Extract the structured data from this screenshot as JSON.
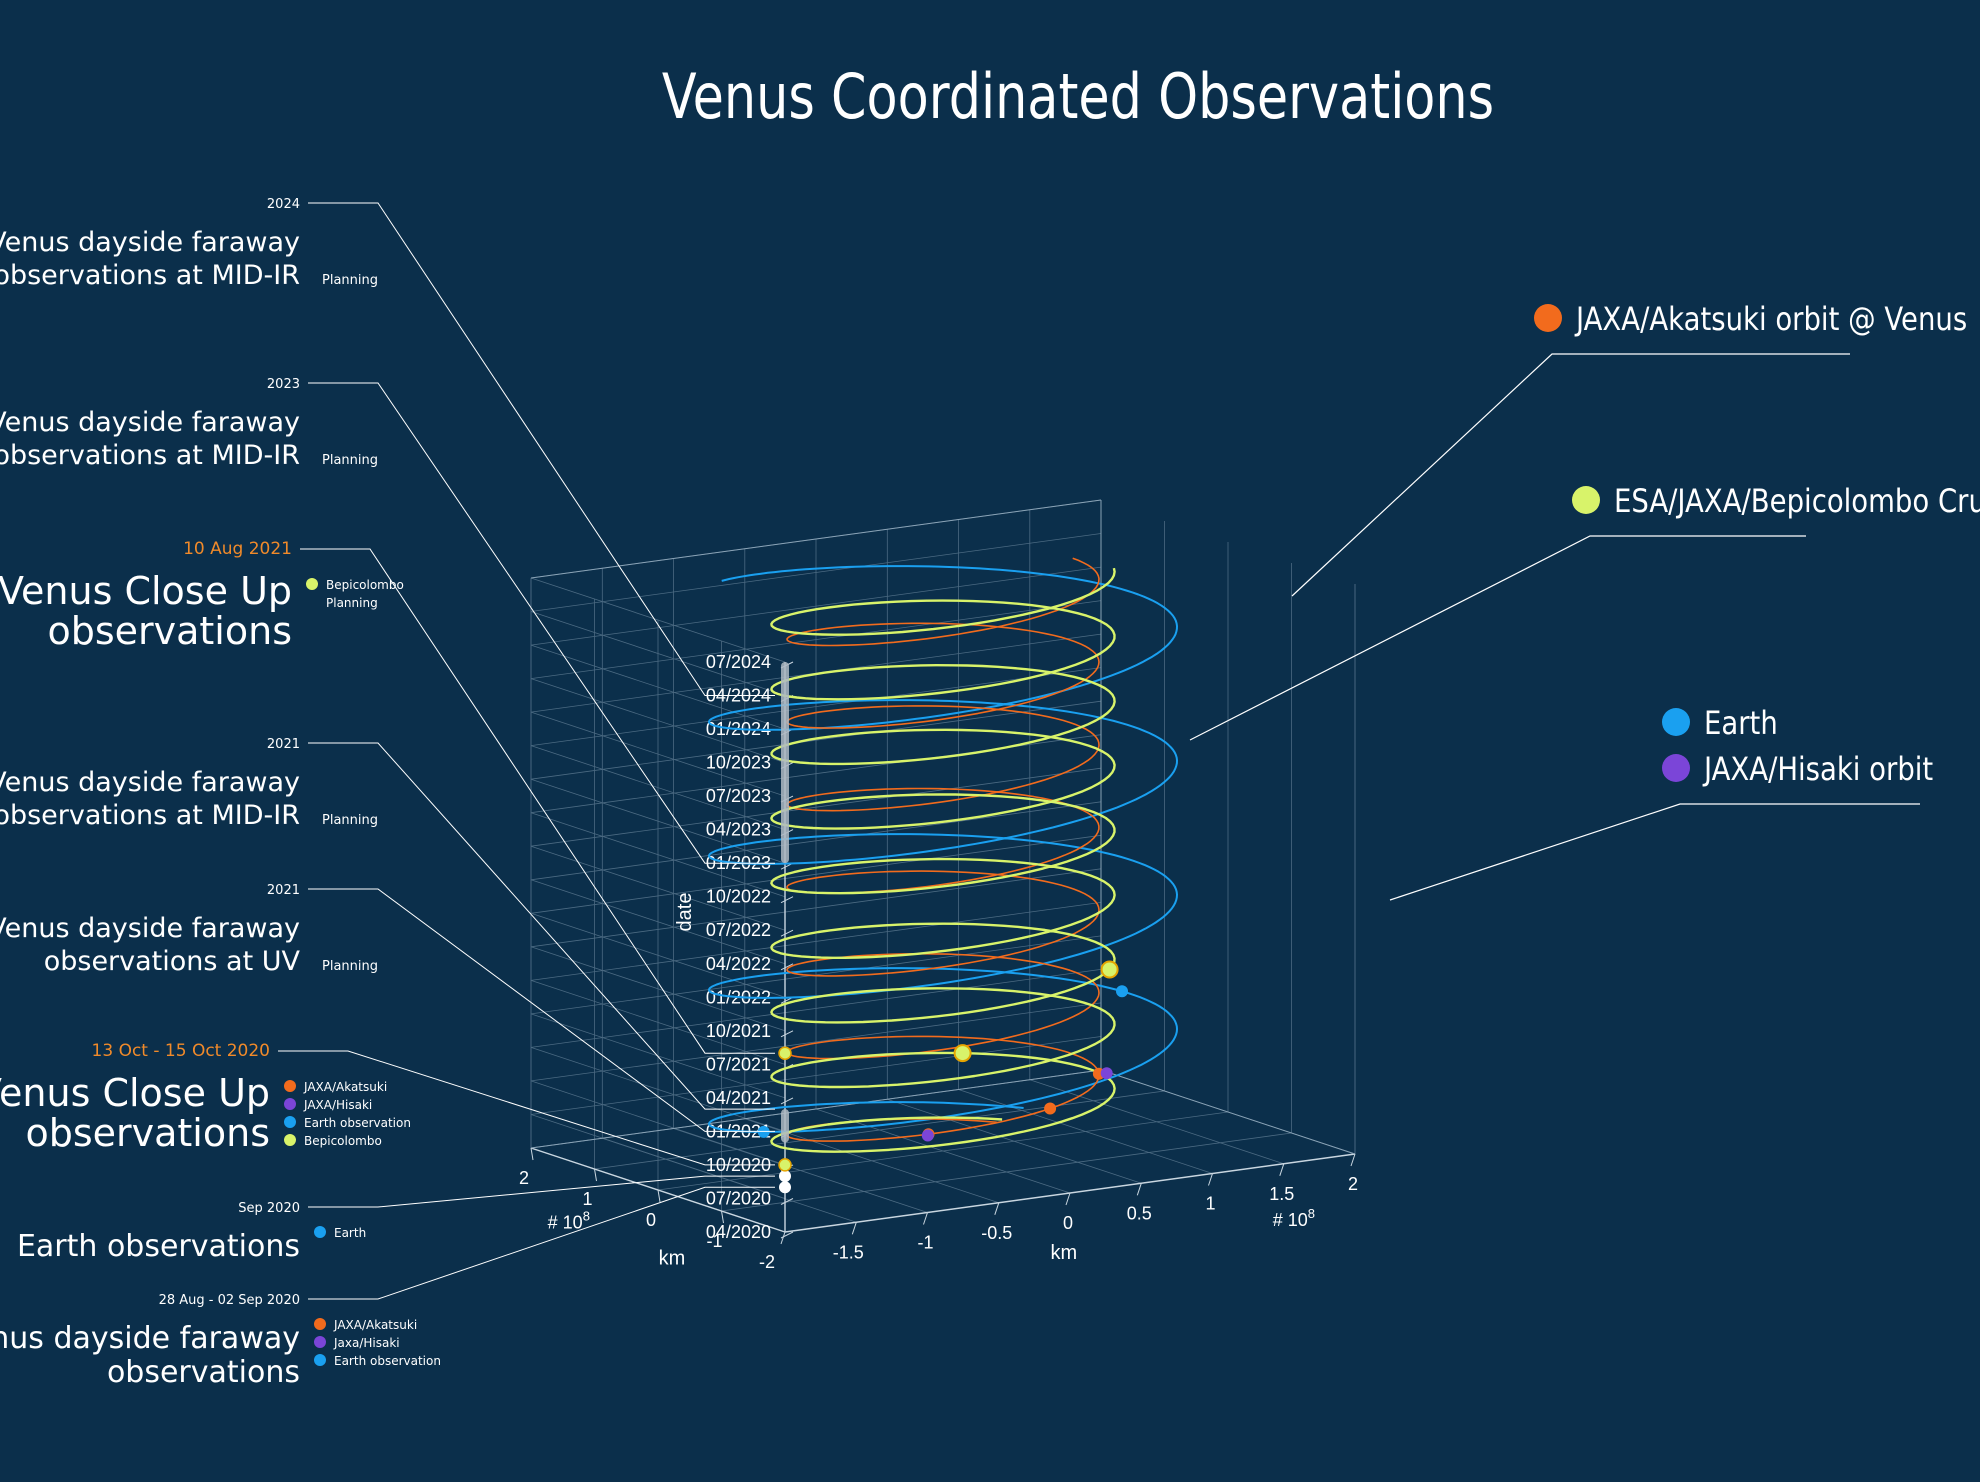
{
  "chart_data": {
    "type": "line",
    "title": "Venus Coordinated Observations",
    "xlabel": "km",
    "ylabel": "km",
    "zlabel": "date",
    "x_ticks": [
      "-2",
      "-1.5",
      "-1",
      "-0.5",
      "0",
      "0.5",
      "1",
      "1.5",
      "2"
    ],
    "y_ticks": [
      "2",
      "1",
      "0",
      "-1"
    ],
    "axis_exponent": "# 10",
    "axis_exponent_power": "8",
    "date_ticks": [
      "04/2020",
      "07/2020",
      "10/2020",
      "01/2021",
      "04/2021",
      "07/2021",
      "10/2021",
      "01/2022",
      "04/2022",
      "07/2022",
      "10/2022",
      "01/2023",
      "04/2023",
      "07/2023",
      "10/2023",
      "01/2024",
      "04/2024",
      "07/2024"
    ],
    "date_range": [
      "2020-04",
      "2024-07"
    ],
    "grid": true,
    "series": [
      {
        "name": "JAXA/Akatsuki orbit @ Venus",
        "color": "#f26b1d",
        "radius_km": 100000000.0,
        "period_days": 225
      },
      {
        "name": "ESA/JAXA/Bepicolombo Cruise",
        "color": "#d8f36a",
        "radius_km": 110000000.0,
        "period_days": 176
      },
      {
        "name": "Earth",
        "color": "#1aa0f0",
        "radius_km": 150000000.0,
        "period_days": 365
      },
      {
        "name": "JAXA/Hisaki orbit",
        "color": "#7b45d8"
      }
    ],
    "timeline_markers": [
      {
        "date": "2020-08",
        "color": "#ffffff"
      },
      {
        "date": "2020-09",
        "color": "#ffffff"
      },
      {
        "date": "2020-10",
        "color": "#d8f36a"
      },
      {
        "date": "2021-08",
        "color": "#d8f36a"
      }
    ],
    "planning_bands": [
      [
        "2020-12",
        "2021-03"
      ],
      [
        "2023-01",
        "2024-07"
      ]
    ],
    "event_points": [
      {
        "series": "JAXA/Akatsuki orbit @ Venus",
        "date": "2020-10"
      },
      {
        "series": "JAXA/Akatsuki orbit @ Venus",
        "date": "2020-09"
      },
      {
        "series": "JAXA/Akatsuki orbit @ Venus",
        "date": "2020-08"
      },
      {
        "series": "JAXA/Hisaki orbit",
        "date": "2020-10"
      },
      {
        "series": "JAXA/Hisaki orbit",
        "date": "2020-08"
      },
      {
        "series": "Earth",
        "date": "2021-03"
      },
      {
        "series": "Earth",
        "date": "2020-09"
      },
      {
        "series": "ESA/JAXA/Bepicolombo Cruise",
        "date": "2020-10"
      },
      {
        "series": "ESA/JAXA/Bepicolombo Cruise",
        "date": "2021-08"
      }
    ],
    "annotations": [
      {
        "date": "2024",
        "title": [
          "Venus dayside faraway",
          "observations at MID-IR"
        ],
        "note": "Planning",
        "size": "small"
      },
      {
        "date": "2023",
        "title": [
          "Venus dayside faraway",
          "observations at MID-IR"
        ],
        "note": "Planning",
        "size": "small"
      },
      {
        "date": "10 Aug 2021",
        "highlight": true,
        "title": [
          "Venus Close Up",
          "observations"
        ],
        "size": "large",
        "legend": [
          {
            "label": "Bepicolombo",
            "color": "#d8f36a"
          },
          {
            "label": "Planning",
            "color": ""
          }
        ]
      },
      {
        "date": "2021",
        "title": [
          "Venus dayside faraway",
          "observations at MID-IR"
        ],
        "note": "Planning",
        "size": "small"
      },
      {
        "date": "2021",
        "title": [
          "Venus dayside faraway",
          "observations at UV"
        ],
        "note": "Planning",
        "size": "small"
      },
      {
        "date": "13 Oct - 15 Oct 2020",
        "highlight": true,
        "title": [
          "Venus Close Up",
          "observations"
        ],
        "size": "large",
        "legend": [
          {
            "label": "JAXA/Akatsuki",
            "color": "#f26b1d"
          },
          {
            "label": "JAXA/Hisaki",
            "color": "#7b45d8"
          },
          {
            "label": "Earth observation",
            "color": "#1aa0f0"
          },
          {
            "label": "Bepicolombo",
            "color": "#d8f36a"
          }
        ]
      },
      {
        "date": "Sep 2020",
        "title": [
          "Earth observations"
        ],
        "size": "medium",
        "legend": [
          {
            "label": "Earth",
            "color": "#1aa0f0"
          }
        ]
      },
      {
        "date": "28 Aug - 02 Sep 2020",
        "title": [
          "Venus dayside faraway",
          "observations"
        ],
        "size": "medium",
        "legend": [
          {
            "label": "JAXA/Akatsuki",
            "color": "#f26b1d"
          },
          {
            "label": "Jaxa/Hisaki",
            "color": "#7b45d8"
          },
          {
            "label": "Earth observation",
            "color": "#1aa0f0"
          }
        ]
      }
    ]
  }
}
